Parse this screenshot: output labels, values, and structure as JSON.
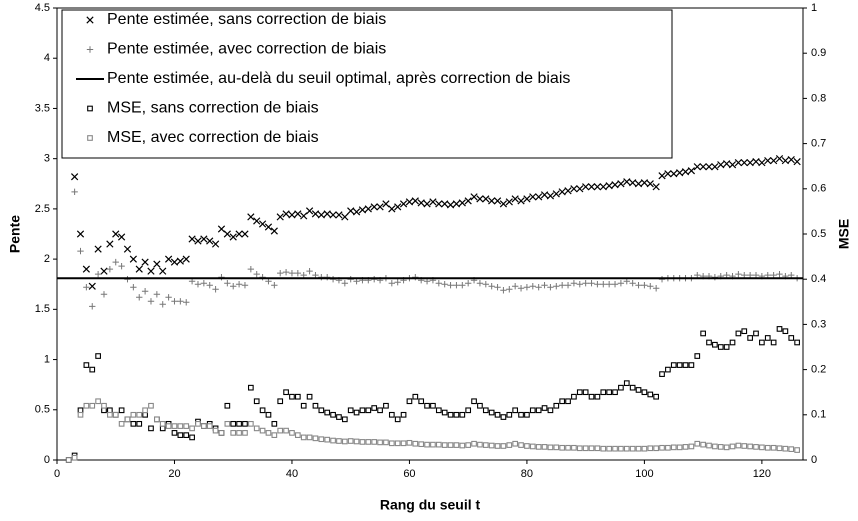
{
  "chart_data": {
    "type": "scatter",
    "x_label": "Rang du seuil t",
    "y_label": "Pente",
    "y2_label": "MSE",
    "xlim": [
      0,
      127
    ],
    "xticks": [
      0,
      20,
      40,
      60,
      80,
      100,
      120
    ],
    "ylim": [
      0,
      4.5
    ],
    "yticks": [
      0,
      0.5,
      1,
      1.5,
      2,
      2.5,
      3,
      3.5,
      4,
      4.5
    ],
    "y2lim": [
      0,
      1
    ],
    "y2ticks": [
      0,
      0.1,
      0.2,
      0.3,
      0.4,
      0.5,
      0.6,
      0.7,
      0.8,
      0.9,
      1
    ],
    "legend": "upper left",
    "x": [
      2,
      3,
      4,
      5,
      6,
      7,
      8,
      9,
      10,
      11,
      12,
      13,
      14,
      15,
      16,
      17,
      18,
      19,
      20,
      21,
      22,
      23,
      24,
      25,
      26,
      27,
      28,
      29,
      30,
      31,
      32,
      33,
      34,
      35,
      36,
      37,
      38,
      39,
      40,
      41,
      42,
      43,
      44,
      45,
      46,
      47,
      48,
      49,
      50,
      51,
      52,
      53,
      54,
      55,
      56,
      57,
      58,
      59,
      60,
      61,
      62,
      63,
      64,
      65,
      66,
      67,
      68,
      69,
      70,
      71,
      72,
      73,
      74,
      75,
      76,
      77,
      78,
      79,
      80,
      81,
      82,
      83,
      84,
      85,
      86,
      87,
      88,
      89,
      90,
      91,
      92,
      93,
      94,
      95,
      96,
      97,
      98,
      99,
      100,
      101,
      102,
      103,
      104,
      105,
      106,
      107,
      108,
      109,
      110,
      111,
      112,
      113,
      114,
      115,
      116,
      117,
      118,
      119,
      120,
      121,
      122,
      123,
      124,
      125,
      126
    ],
    "series": [
      {
        "name": "Pente estimée, sans correction de biais",
        "marker": "x",
        "color": "#000000",
        "values": [
          null,
          2.82,
          2.25,
          1.9,
          1.73,
          2.1,
          1.88,
          2.15,
          2.25,
          2.22,
          2.1,
          2.0,
          1.9,
          1.97,
          1.88,
          1.95,
          1.88,
          2.0,
          1.97,
          1.98,
          2.0,
          2.2,
          2.18,
          2.2,
          2.18,
          2.15,
          2.3,
          2.25,
          2.22,
          2.25,
          2.25,
          2.42,
          2.38,
          2.35,
          2.32,
          2.28,
          2.42,
          2.45,
          2.44,
          2.45,
          2.43,
          2.48,
          2.45,
          2.44,
          2.45,
          2.44,
          2.44,
          2.42,
          2.48,
          2.47,
          2.49,
          2.5,
          2.52,
          2.52,
          2.55,
          2.5,
          2.52,
          2.55,
          2.57,
          2.58,
          2.56,
          2.55,
          2.57,
          2.55,
          2.55,
          2.54,
          2.55,
          2.56,
          2.58,
          2.62,
          2.6,
          2.6,
          2.58,
          2.58,
          2.55,
          2.57,
          2.6,
          2.58,
          2.6,
          2.62,
          2.62,
          2.64,
          2.63,
          2.65,
          2.67,
          2.68,
          2.7,
          2.7,
          2.72,
          2.72,
          2.72,
          2.72,
          2.73,
          2.74,
          2.75,
          2.77,
          2.76,
          2.75,
          2.76,
          2.75,
          2.72,
          2.83,
          2.85,
          2.85,
          2.86,
          2.87,
          2.88,
          2.92,
          2.92,
          2.92,
          2.92,
          2.94,
          2.95,
          2.94,
          2.96,
          2.96,
          2.96,
          2.97,
          2.96,
          2.98,
          2.98,
          3.0,
          2.98,
          2.99,
          2.97
        ]
      },
      {
        "name": "Pente estimée, avec correction de biais",
        "marker": "plus",
        "color": "#777777",
        "values": [
          null,
          2.67,
          2.08,
          1.72,
          1.53,
          1.85,
          1.65,
          1.9,
          1.97,
          1.93,
          1.8,
          1.72,
          1.62,
          1.68,
          1.58,
          1.65,
          1.55,
          1.62,
          1.58,
          1.58,
          1.57,
          1.78,
          1.75,
          1.76,
          1.74,
          1.7,
          1.82,
          1.76,
          1.73,
          1.75,
          1.74,
          1.9,
          1.85,
          1.82,
          1.78,
          1.74,
          1.86,
          1.87,
          1.86,
          1.86,
          1.84,
          1.88,
          1.84,
          1.82,
          1.82,
          1.8,
          1.79,
          1.76,
          1.8,
          1.78,
          1.79,
          1.79,
          1.8,
          1.79,
          1.81,
          1.76,
          1.77,
          1.79,
          1.81,
          1.82,
          1.79,
          1.78,
          1.79,
          1.76,
          1.75,
          1.74,
          1.74,
          1.74,
          1.76,
          1.79,
          1.76,
          1.75,
          1.73,
          1.72,
          1.69,
          1.7,
          1.73,
          1.71,
          1.72,
          1.73,
          1.72,
          1.74,
          1.72,
          1.73,
          1.74,
          1.74,
          1.76,
          1.75,
          1.76,
          1.76,
          1.75,
          1.75,
          1.75,
          1.75,
          1.76,
          1.78,
          1.76,
          1.74,
          1.74,
          1.73,
          1.71,
          1.8,
          1.81,
          1.81,
          1.81,
          1.81,
          1.81,
          1.84,
          1.83,
          1.83,
          1.82,
          1.83,
          1.84,
          1.83,
          1.85,
          1.84,
          1.84,
          1.84,
          1.83,
          1.84,
          1.84,
          1.85,
          1.83,
          1.84,
          1.81
        ]
      },
      {
        "name": "Pente estimée, au-delà du seuil optimal, après correction de biais",
        "marker": "hline",
        "color": "#000000",
        "value": 1.81
      },
      {
        "name": "MSE, sans correction de biais",
        "marker": "square",
        "color": "#000000",
        "axis": "y2",
        "values": [
          0.0,
          0.01,
          0.11,
          0.21,
          0.2,
          0.23,
          0.11,
          0.11,
          0.1,
          0.11,
          0.09,
          0.08,
          0.08,
          0.1,
          0.07,
          0.09,
          0.07,
          0.08,
          0.06,
          0.055,
          0.055,
          0.05,
          0.085,
          0.075,
          0.08,
          0.07,
          0.06,
          0.12,
          0.08,
          0.08,
          0.08,
          0.16,
          0.13,
          0.11,
          0.1,
          0.08,
          0.13,
          0.15,
          0.14,
          0.14,
          0.12,
          0.14,
          0.12,
          0.11,
          0.105,
          0.1,
          0.095,
          0.09,
          0.11,
          0.105,
          0.11,
          0.11,
          0.115,
          0.11,
          0.12,
          0.1,
          0.09,
          0.1,
          0.13,
          0.14,
          0.13,
          0.12,
          0.12,
          0.11,
          0.105,
          0.1,
          0.1,
          0.1,
          0.11,
          0.13,
          0.12,
          0.11,
          0.105,
          0.1,
          0.095,
          0.1,
          0.11,
          0.1,
          0.1,
          0.11,
          0.11,
          0.115,
          0.11,
          0.12,
          0.13,
          0.13,
          0.14,
          0.15,
          0.15,
          0.14,
          0.14,
          0.15,
          0.15,
          0.15,
          0.16,
          0.17,
          0.16,
          0.155,
          0.15,
          0.145,
          0.14,
          0.19,
          0.2,
          0.21,
          0.21,
          0.21,
          0.21,
          0.23,
          0.28,
          0.26,
          0.255,
          0.25,
          0.25,
          0.26,
          0.28,
          0.285,
          0.27,
          0.28,
          0.26,
          0.27,
          0.26,
          0.29,
          0.285,
          0.27,
          0.26
        ]
      },
      {
        "name": "MSE, avec correction de biais",
        "marker": "square",
        "color": "#888888",
        "axis": "y2",
        "values": [
          0.0,
          0.005,
          0.1,
          0.12,
          0.12,
          0.13,
          0.12,
          0.1,
          0.1,
          0.08,
          0.09,
          0.1,
          0.1,
          0.11,
          0.12,
          0.09,
          0.08,
          0.075,
          0.075,
          0.075,
          0.075,
          0.07,
          0.08,
          0.075,
          0.075,
          0.065,
          0.06,
          0.08,
          0.06,
          0.06,
          0.06,
          0.08,
          0.07,
          0.065,
          0.06,
          0.055,
          0.065,
          0.065,
          0.06,
          0.055,
          0.05,
          0.05,
          0.048,
          0.046,
          0.045,
          0.043,
          0.042,
          0.041,
          0.042,
          0.041,
          0.04,
          0.04,
          0.04,
          0.039,
          0.039,
          0.037,
          0.037,
          0.037,
          0.038,
          0.036,
          0.035,
          0.034,
          0.034,
          0.034,
          0.033,
          0.033,
          0.033,
          0.032,
          0.033,
          0.036,
          0.034,
          0.033,
          0.032,
          0.031,
          0.031,
          0.033,
          0.036,
          0.033,
          0.031,
          0.03,
          0.029,
          0.029,
          0.028,
          0.028,
          0.027,
          0.027,
          0.027,
          0.026,
          0.026,
          0.026,
          0.026,
          0.025,
          0.025,
          0.025,
          0.025,
          0.025,
          0.025,
          0.025,
          0.025,
          0.026,
          0.026,
          0.027,
          0.027,
          0.028,
          0.028,
          0.029,
          0.03,
          0.036,
          0.034,
          0.032,
          0.03,
          0.029,
          0.028,
          0.03,
          0.032,
          0.031,
          0.03,
          0.029,
          0.028,
          0.027,
          0.027,
          0.026,
          0.025,
          0.024,
          0.022
        ]
      }
    ]
  }
}
